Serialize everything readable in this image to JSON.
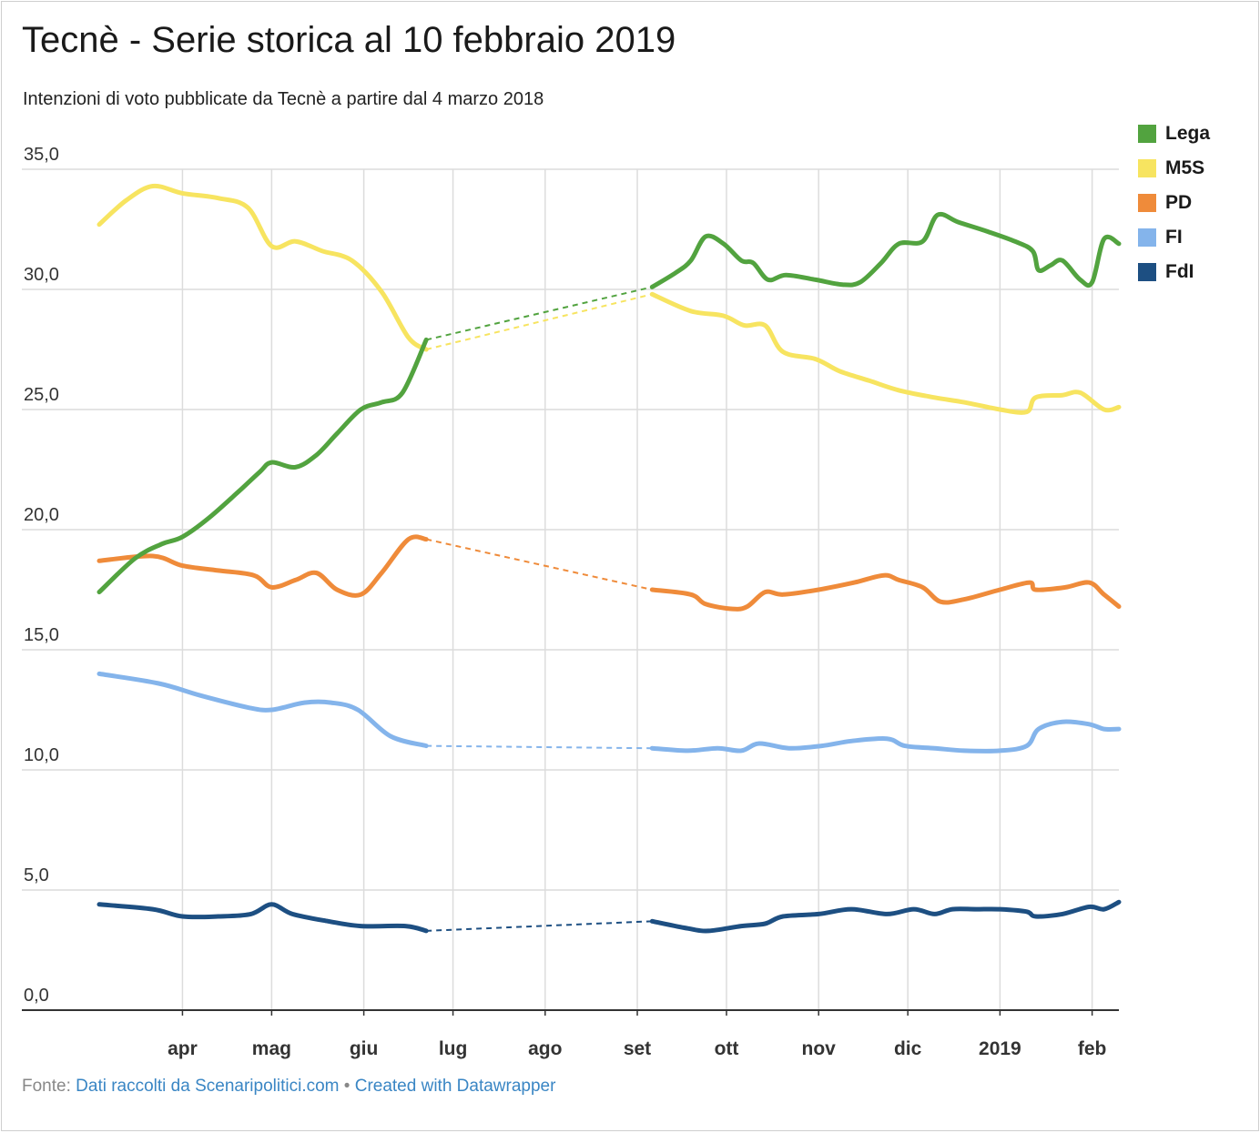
{
  "title": "Tecnè - Serie storica al 10 febbraio 2019",
  "subtitle": "Intenzioni di voto pubblicate da Tecnè a partire dal 4 marzo 2018",
  "footer": {
    "prefix": "Fonte:",
    "source_link": "Dati raccolti da Scenaripolitici.com",
    "separator": "•",
    "credit_link": "Created with Datawrapper"
  },
  "chart_data": {
    "type": "line",
    "x_unit": "date",
    "ylim": [
      0,
      35
    ],
    "y_ticks": [
      0,
      5,
      10,
      15,
      20,
      25,
      30,
      35
    ],
    "y_tick_labels": [
      "0,0",
      "5,0",
      "10,0",
      "15,0",
      "20,0",
      "25,0",
      "30,0",
      "35,0"
    ],
    "x_ticks": [
      {
        "date": "2018-04-01",
        "label": "apr"
      },
      {
        "date": "2018-05-01",
        "label": "mag"
      },
      {
        "date": "2018-06-01",
        "label": "giu"
      },
      {
        "date": "2018-07-01",
        "label": "lug"
      },
      {
        "date": "2018-08-01",
        "label": "ago"
      },
      {
        "date": "2018-09-01",
        "label": "set"
      },
      {
        "date": "2018-10-01",
        "label": "ott"
      },
      {
        "date": "2018-11-01",
        "label": "nov"
      },
      {
        "date": "2018-12-01",
        "label": "dic"
      },
      {
        "date": "2019-01-01",
        "label": "2019"
      },
      {
        "date": "2019-02-01",
        "label": "feb"
      }
    ],
    "x_range": [
      "2018-03-04",
      "2019-02-10"
    ],
    "gap_between": [
      "2018-06-22",
      "2018-09-06"
    ],
    "grid": true,
    "legend_position": "top-right",
    "series": [
      {
        "name": "Lega",
        "color": "#52a33f",
        "points": [
          [
            "2018-03-04",
            17.4
          ],
          [
            "2018-03-16",
            18.8
          ],
          [
            "2018-03-25",
            19.4
          ],
          [
            "2018-04-01",
            19.7
          ],
          [
            "2018-04-10",
            20.5
          ],
          [
            "2018-04-20",
            21.6
          ],
          [
            "2018-04-27",
            22.4
          ],
          [
            "2018-05-01",
            22.8
          ],
          [
            "2018-05-09",
            22.6
          ],
          [
            "2018-05-16",
            23.1
          ],
          [
            "2018-05-23",
            24.0
          ],
          [
            "2018-05-31",
            25.0
          ],
          [
            "2018-06-07",
            25.3
          ],
          [
            "2018-06-14",
            25.7
          ],
          [
            "2018-06-22",
            27.9
          ],
          [
            "2018-09-06",
            30.1
          ],
          [
            "2018-09-14",
            30.7
          ],
          [
            "2018-09-19",
            31.2
          ],
          [
            "2018-09-24",
            32.2
          ],
          [
            "2018-09-30",
            31.9
          ],
          [
            "2018-10-06",
            31.2
          ],
          [
            "2018-10-10",
            31.1
          ],
          [
            "2018-10-15",
            30.4
          ],
          [
            "2018-10-21",
            30.6
          ],
          [
            "2018-10-31",
            30.4
          ],
          [
            "2018-11-09",
            30.2
          ],
          [
            "2018-11-15",
            30.3
          ],
          [
            "2018-11-22",
            31.1
          ],
          [
            "2018-11-28",
            31.9
          ],
          [
            "2018-12-06",
            32.0
          ],
          [
            "2018-12-11",
            33.1
          ],
          [
            "2018-12-18",
            32.8
          ],
          [
            "2018-12-28",
            32.4
          ],
          [
            "2019-01-06",
            32.0
          ],
          [
            "2019-01-12",
            31.6
          ],
          [
            "2019-01-14",
            30.8
          ],
          [
            "2019-01-18",
            31.0
          ],
          [
            "2019-01-22",
            31.2
          ],
          [
            "2019-01-28",
            30.4
          ],
          [
            "2019-02-01",
            30.3
          ],
          [
            "2019-02-05",
            32.1
          ],
          [
            "2019-02-10",
            31.9
          ]
        ]
      },
      {
        "name": "M5S",
        "color": "#f7e460",
        "points": [
          [
            "2018-03-04",
            32.7
          ],
          [
            "2018-03-13",
            33.7
          ],
          [
            "2018-03-22",
            34.3
          ],
          [
            "2018-04-01",
            34.0
          ],
          [
            "2018-04-13",
            33.8
          ],
          [
            "2018-04-23",
            33.4
          ],
          [
            "2018-05-01",
            31.8
          ],
          [
            "2018-05-09",
            32.0
          ],
          [
            "2018-05-18",
            31.6
          ],
          [
            "2018-05-28",
            31.2
          ],
          [
            "2018-06-07",
            29.9
          ],
          [
            "2018-06-16",
            28.0
          ],
          [
            "2018-06-22",
            27.5
          ],
          [
            "2018-09-06",
            29.8
          ],
          [
            "2018-09-19",
            29.1
          ],
          [
            "2018-09-30",
            28.9
          ],
          [
            "2018-10-07",
            28.5
          ],
          [
            "2018-10-14",
            28.5
          ],
          [
            "2018-10-20",
            27.4
          ],
          [
            "2018-10-31",
            27.1
          ],
          [
            "2018-11-08",
            26.6
          ],
          [
            "2018-11-18",
            26.2
          ],
          [
            "2018-11-28",
            25.8
          ],
          [
            "2018-12-10",
            25.5
          ],
          [
            "2018-12-20",
            25.3
          ],
          [
            "2019-01-01",
            25.0
          ],
          [
            "2019-01-10",
            24.9
          ],
          [
            "2019-01-13",
            25.5
          ],
          [
            "2019-01-22",
            25.6
          ],
          [
            "2019-01-28",
            25.7
          ],
          [
            "2019-02-05",
            25.0
          ],
          [
            "2019-02-10",
            25.1
          ]
        ]
      },
      {
        "name": "PD",
        "color": "#ef8b3a",
        "points": [
          [
            "2018-03-04",
            18.7
          ],
          [
            "2018-03-22",
            18.9
          ],
          [
            "2018-04-01",
            18.5
          ],
          [
            "2018-04-13",
            18.3
          ],
          [
            "2018-04-25",
            18.1
          ],
          [
            "2018-05-01",
            17.6
          ],
          [
            "2018-05-09",
            17.9
          ],
          [
            "2018-05-16",
            18.2
          ],
          [
            "2018-05-23",
            17.5
          ],
          [
            "2018-05-31",
            17.3
          ],
          [
            "2018-06-07",
            18.2
          ],
          [
            "2018-06-16",
            19.6
          ],
          [
            "2018-06-22",
            19.6
          ],
          [
            "2018-09-06",
            17.5
          ],
          [
            "2018-09-19",
            17.3
          ],
          [
            "2018-09-24",
            16.9
          ],
          [
            "2018-10-03",
            16.7
          ],
          [
            "2018-10-08",
            16.8
          ],
          [
            "2018-10-14",
            17.4
          ],
          [
            "2018-10-20",
            17.3
          ],
          [
            "2018-11-01",
            17.5
          ],
          [
            "2018-11-13",
            17.8
          ],
          [
            "2018-11-23",
            18.1
          ],
          [
            "2018-11-28",
            17.9
          ],
          [
            "2018-12-06",
            17.6
          ],
          [
            "2018-12-12",
            17.0
          ],
          [
            "2018-12-20",
            17.1
          ],
          [
            "2019-01-01",
            17.5
          ],
          [
            "2019-01-11",
            17.8
          ],
          [
            "2019-01-13",
            17.5
          ],
          [
            "2019-01-23",
            17.6
          ],
          [
            "2019-01-31",
            17.8
          ],
          [
            "2019-02-05",
            17.3
          ],
          [
            "2019-02-10",
            16.8
          ]
        ]
      },
      {
        "name": "FI",
        "color": "#84b4eb",
        "points": [
          [
            "2018-03-04",
            14.0
          ],
          [
            "2018-03-24",
            13.6
          ],
          [
            "2018-04-07",
            13.1
          ],
          [
            "2018-04-23",
            12.6
          ],
          [
            "2018-05-01",
            12.5
          ],
          [
            "2018-05-12",
            12.8
          ],
          [
            "2018-05-21",
            12.8
          ],
          [
            "2018-05-30",
            12.5
          ],
          [
            "2018-06-10",
            11.4
          ],
          [
            "2018-06-22",
            11.0
          ],
          [
            "2018-09-06",
            10.9
          ],
          [
            "2018-09-18",
            10.8
          ],
          [
            "2018-09-28",
            10.9
          ],
          [
            "2018-10-06",
            10.8
          ],
          [
            "2018-10-12",
            11.1
          ],
          [
            "2018-10-22",
            10.9
          ],
          [
            "2018-11-02",
            11.0
          ],
          [
            "2018-11-12",
            11.2
          ],
          [
            "2018-11-24",
            11.3
          ],
          [
            "2018-11-30",
            11.0
          ],
          [
            "2018-12-10",
            10.9
          ],
          [
            "2018-12-20",
            10.8
          ],
          [
            "2019-01-01",
            10.8
          ],
          [
            "2019-01-10",
            11.0
          ],
          [
            "2019-01-14",
            11.7
          ],
          [
            "2019-01-22",
            12.0
          ],
          [
            "2019-01-31",
            11.9
          ],
          [
            "2019-02-05",
            11.7
          ],
          [
            "2019-02-10",
            11.7
          ]
        ]
      },
      {
        "name": "FdI",
        "color": "#1d4f82",
        "points": [
          [
            "2018-03-04",
            4.4
          ],
          [
            "2018-03-22",
            4.2
          ],
          [
            "2018-04-01",
            3.9
          ],
          [
            "2018-04-13",
            3.9
          ],
          [
            "2018-04-24",
            4.0
          ],
          [
            "2018-05-01",
            4.4
          ],
          [
            "2018-05-08",
            4.0
          ],
          [
            "2018-05-20",
            3.7
          ],
          [
            "2018-05-31",
            3.5
          ],
          [
            "2018-06-15",
            3.5
          ],
          [
            "2018-06-22",
            3.3
          ],
          [
            "2018-09-06",
            3.7
          ],
          [
            "2018-09-18",
            3.4
          ],
          [
            "2018-09-25",
            3.3
          ],
          [
            "2018-10-06",
            3.5
          ],
          [
            "2018-10-14",
            3.6
          ],
          [
            "2018-10-20",
            3.9
          ],
          [
            "2018-11-01",
            4.0
          ],
          [
            "2018-11-12",
            4.2
          ],
          [
            "2018-11-24",
            4.0
          ],
          [
            "2018-12-03",
            4.2
          ],
          [
            "2018-12-10",
            4.0
          ],
          [
            "2018-12-16",
            4.2
          ],
          [
            "2018-12-24",
            4.2
          ],
          [
            "2019-01-01",
            4.2
          ],
          [
            "2019-01-10",
            4.1
          ],
          [
            "2019-01-13",
            3.9
          ],
          [
            "2019-01-22",
            4.0
          ],
          [
            "2019-01-31",
            4.3
          ],
          [
            "2019-02-05",
            4.2
          ],
          [
            "2019-02-10",
            4.5
          ]
        ]
      }
    ]
  }
}
